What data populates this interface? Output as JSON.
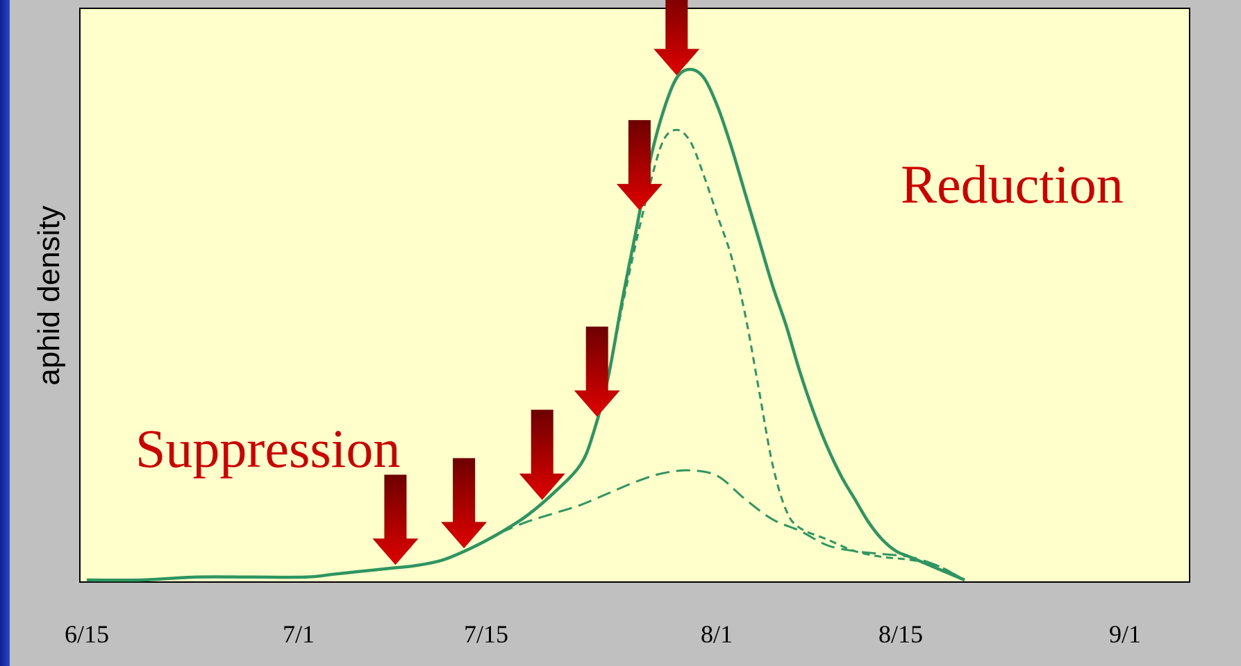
{
  "chart_data": {
    "type": "line",
    "title": "",
    "xlabel": "",
    "ylabel": "aphid density",
    "x_ticks": [
      "6/15",
      "7/1",
      "7/15",
      "8/1",
      "8/15",
      "9/1"
    ],
    "y_ticks": [],
    "grid": false,
    "legend": "none",
    "series": [
      {
        "line_style": "solid",
        "points": [
          [
            0,
            0.0
          ],
          [
            4,
            0.0
          ],
          [
            8,
            0.005
          ],
          [
            12,
            0.005
          ],
          [
            16,
            0.005
          ],
          [
            18,
            0.01
          ],
          [
            20,
            0.015
          ],
          [
            22,
            0.02
          ],
          [
            24,
            0.025
          ],
          [
            26,
            0.035
          ],
          [
            28,
            0.055
          ],
          [
            30,
            0.08
          ],
          [
            32,
            0.11
          ],
          [
            34,
            0.15
          ],
          [
            36,
            0.2
          ],
          [
            37,
            0.26
          ],
          [
            38,
            0.35
          ],
          [
            39,
            0.48
          ],
          [
            40,
            0.6
          ],
          [
            41,
            0.72
          ],
          [
            42,
            0.81
          ],
          [
            43,
            0.87
          ],
          [
            44,
            0.885
          ],
          [
            45,
            0.87
          ],
          [
            46,
            0.82
          ],
          [
            47,
            0.75
          ],
          [
            48,
            0.67
          ],
          [
            49,
            0.59
          ],
          [
            50,
            0.51
          ],
          [
            51,
            0.44
          ],
          [
            52,
            0.36
          ],
          [
            53,
            0.29
          ],
          [
            54,
            0.23
          ],
          [
            55,
            0.18
          ],
          [
            56,
            0.14
          ],
          [
            57,
            0.1
          ],
          [
            58,
            0.07
          ],
          [
            59,
            0.05
          ],
          [
            60,
            0.04
          ],
          [
            62,
            0.02
          ],
          [
            64,
            0.0
          ]
        ]
      },
      {
        "line_style": "short-dash",
        "points": [
          [
            34,
            0.15
          ],
          [
            36,
            0.2
          ],
          [
            37,
            0.26
          ],
          [
            38,
            0.35
          ],
          [
            39,
            0.47
          ],
          [
            40,
            0.58
          ],
          [
            41,
            0.68
          ],
          [
            42,
            0.76
          ],
          [
            43,
            0.78
          ],
          [
            44,
            0.76
          ],
          [
            45,
            0.7
          ],
          [
            46,
            0.63
          ],
          [
            47,
            0.56
          ],
          [
            48,
            0.46
          ],
          [
            49,
            0.33
          ],
          [
            50,
            0.2
          ],
          [
            51,
            0.12
          ],
          [
            52,
            0.09
          ],
          [
            54,
            0.07
          ],
          [
            56,
            0.05
          ],
          [
            58,
            0.04
          ],
          [
            60,
            0.035
          ],
          [
            62,
            0.025
          ],
          [
            64,
            0.0
          ]
        ]
      },
      {
        "line_style": "long-dash",
        "points": [
          [
            26,
            0.035
          ],
          [
            28,
            0.055
          ],
          [
            30,
            0.08
          ],
          [
            32,
            0.1
          ],
          [
            34,
            0.115
          ],
          [
            36,
            0.13
          ],
          [
            38,
            0.15
          ],
          [
            40,
            0.17
          ],
          [
            42,
            0.185
          ],
          [
            44,
            0.19
          ],
          [
            46,
            0.18
          ],
          [
            48,
            0.14
          ],
          [
            50,
            0.105
          ],
          [
            52,
            0.085
          ],
          [
            54,
            0.06
          ],
          [
            56,
            0.05
          ],
          [
            58,
            0.045
          ],
          [
            60,
            0.04
          ],
          [
            62,
            0.025
          ],
          [
            64,
            0.0
          ]
        ]
      }
    ],
    "line_color": "#2e9560",
    "annotations": [
      {
        "text": "Suppression",
        "color": "#cc0000"
      },
      {
        "text": "Reduction",
        "color": "#cc0000"
      }
    ],
    "arrows": {
      "color": "#e00000",
      "dark_color": "#6e0000",
      "treatment_days": [
        22.5,
        27.5,
        33.2,
        37.2,
        40.3,
        43.0
      ]
    },
    "colors": {
      "plot_background": "#ffffcc",
      "slide_background": "#c0c0c0",
      "side_band": "#1a32b0"
    }
  }
}
